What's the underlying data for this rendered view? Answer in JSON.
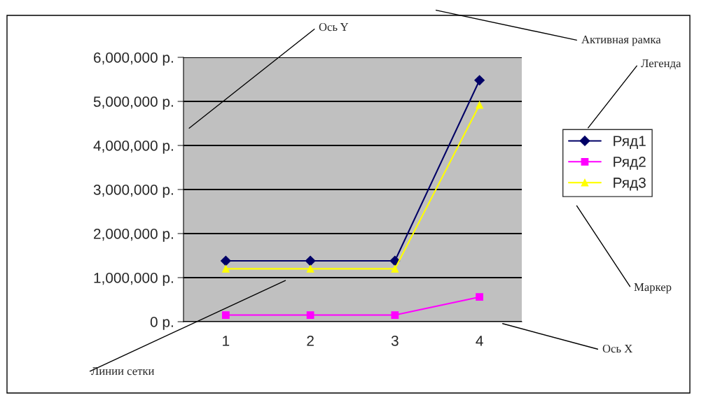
{
  "chart_data": {
    "type": "line",
    "categories": [
      "1",
      "2",
      "3",
      "4"
    ],
    "series": [
      {
        "name": "Ряд1",
        "color": "#000066",
        "marker": "diamond",
        "values": [
          1380000,
          1380000,
          1380000,
          5480000
        ]
      },
      {
        "name": "Ряд2",
        "color": "#ff00ff",
        "marker": "square",
        "values": [
          150000,
          150000,
          150000,
          560000
        ]
      },
      {
        "name": "Ряд3",
        "color": "#ffff00",
        "marker": "triangle",
        "values": [
          1200000,
          1200000,
          1200000,
          4920000
        ]
      }
    ],
    "ylim": [
      0,
      6000000
    ],
    "yticks": [
      {
        "value": 0,
        "label": "0 р."
      },
      {
        "value": 1000000,
        "label": "1,000,000 р."
      },
      {
        "value": 2000000,
        "label": "2,000,000 р."
      },
      {
        "value": 3000000,
        "label": "3,000,000 р."
      },
      {
        "value": 4000000,
        "label": "4,000,000 р."
      },
      {
        "value": 5000000,
        "label": "5,000,000 р."
      },
      {
        "value": 6000000,
        "label": "6,000,000 р."
      }
    ],
    "grid": "y",
    "legend": "right",
    "annotations": [
      "Ось Y",
      "Активная рамка",
      "Легенда",
      "Маркер",
      "Ось X",
      "Линии сетки"
    ]
  }
}
